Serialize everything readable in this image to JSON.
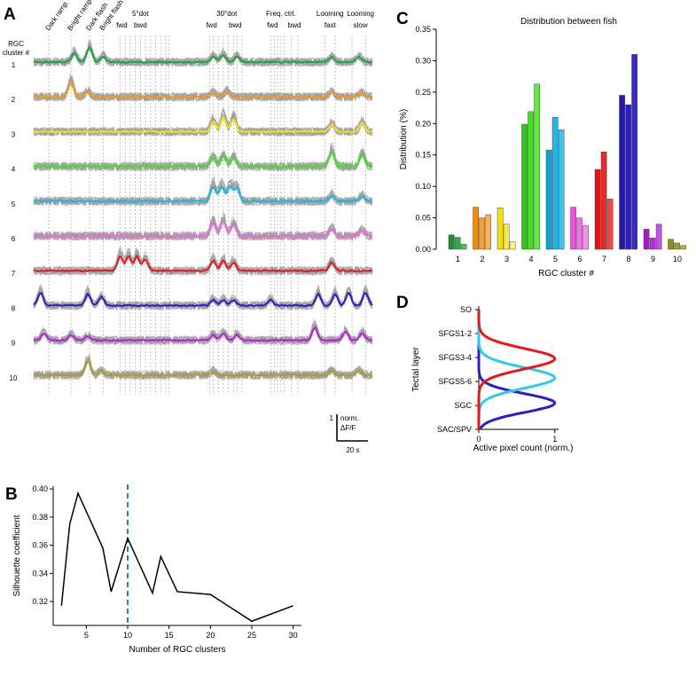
{
  "panels": {
    "A": "A",
    "B": "B",
    "C": "C",
    "D": "D"
  },
  "chart_data": [
    {
      "panel": "A",
      "type": "line",
      "row_header": "RGC cluster #",
      "stimuli": [
        {
          "label": "Dark ramp",
          "x": 0.045,
          "rot": true
        },
        {
          "label": "Bright ramp",
          "x": 0.11,
          "rot": true
        },
        {
          "label": "Dark flash",
          "x": 0.165,
          "rot": true
        },
        {
          "label": "Bright flash",
          "x": 0.205,
          "rot": true
        },
        {
          "label": "5°dot",
          "x": 0.315,
          "rot": false,
          "row": 1
        },
        {
          "label": "fwd",
          "x": 0.26,
          "rot": false,
          "row": 2
        },
        {
          "label": "bwd",
          "x": 0.315,
          "rot": false,
          "row": 2
        },
        {
          "label": "30°dot",
          "x": 0.57,
          "rot": false,
          "row": 1
        },
        {
          "label": "fwd",
          "x": 0.525,
          "rot": false,
          "row": 2
        },
        {
          "label": "bwd",
          "x": 0.595,
          "rot": false,
          "row": 2
        },
        {
          "label": "Freq. ctrl.",
          "x": 0.73,
          "rot": false,
          "row": 1
        },
        {
          "label": "fwd",
          "x": 0.705,
          "rot": false,
          "row": 2
        },
        {
          "label": "bwd",
          "x": 0.77,
          "rot": false,
          "row": 2
        },
        {
          "label": "Looming",
          "x": 0.875,
          "rot": false,
          "row": 1
        },
        {
          "label": "fast",
          "x": 0.875,
          "rot": false,
          "row": 2
        },
        {
          "label": "Looming",
          "x": 0.965,
          "rot": false,
          "row": 1
        },
        {
          "label": "slow",
          "x": 0.965,
          "rot": false,
          "row": 2
        }
      ],
      "clusters": [
        {
          "id": "1",
          "color": "#1fa23e",
          "bumps": [
            [
              0.12,
              0.6
            ],
            [
              0.165,
              1.0
            ],
            [
              0.205,
              0.4
            ],
            [
              0.53,
              0.4
            ],
            [
              0.56,
              0.5
            ],
            [
              0.6,
              0.4
            ],
            [
              0.88,
              0.35
            ],
            [
              0.96,
              0.35
            ]
          ]
        },
        {
          "id": "2",
          "color": "#f39a1e",
          "bumps": [
            [
              0.11,
              1.0
            ],
            [
              0.16,
              0.35
            ],
            [
              0.53,
              0.3
            ],
            [
              0.57,
              0.35
            ],
            [
              0.88,
              0.35
            ],
            [
              0.97,
              0.3
            ]
          ]
        },
        {
          "id": "3",
          "color": "#f2e21a",
          "bumps": [
            [
              0.53,
              0.7
            ],
            [
              0.56,
              1.0
            ],
            [
              0.59,
              0.9
            ],
            [
              0.88,
              0.5
            ],
            [
              0.97,
              0.6
            ]
          ]
        },
        {
          "id": "4",
          "color": "#3de31f",
          "bumps": [
            [
              0.53,
              0.6
            ],
            [
              0.56,
              0.7
            ],
            [
              0.59,
              0.6
            ],
            [
              0.88,
              1.0
            ],
            [
              0.97,
              0.8
            ]
          ]
        },
        {
          "id": "5",
          "color": "#1fb8e3",
          "bumps": [
            [
              0.53,
              1.0
            ],
            [
              0.555,
              1.0
            ],
            [
              0.58,
              1.0
            ],
            [
              0.6,
              0.9
            ],
            [
              0.88,
              0.4
            ],
            [
              0.97,
              0.35
            ]
          ]
        },
        {
          "id": "6",
          "color": "#f266e3",
          "bumps": [
            [
              0.53,
              0.9
            ],
            [
              0.56,
              1.0
            ],
            [
              0.59,
              0.8
            ],
            [
              0.88,
              0.5
            ],
            [
              0.97,
              0.4
            ]
          ]
        },
        {
          "id": "7",
          "color": "#e31a1a",
          "bumps": [
            [
              0.255,
              1.0
            ],
            [
              0.28,
              1.0
            ],
            [
              0.305,
              1.0
            ],
            [
              0.33,
              0.8
            ],
            [
              0.53,
              0.7
            ],
            [
              0.56,
              0.7
            ],
            [
              0.59,
              0.6
            ],
            [
              0.88,
              0.6
            ]
          ]
        },
        {
          "id": "8",
          "color": "#2b1fc2",
          "bumps": [
            [
              0.02,
              0.9
            ],
            [
              0.16,
              0.8
            ],
            [
              0.2,
              0.6
            ],
            [
              0.53,
              0.4
            ],
            [
              0.56,
              0.4
            ],
            [
              0.59,
              0.4
            ],
            [
              0.7,
              0.4
            ],
            [
              0.84,
              0.8
            ],
            [
              0.89,
              0.8
            ],
            [
              0.93,
              0.9
            ],
            [
              0.98,
              0.9
            ]
          ]
        },
        {
          "id": "9",
          "color": "#b91fd8",
          "bumps": [
            [
              0.03,
              0.5
            ],
            [
              0.11,
              0.4
            ],
            [
              0.16,
              0.3
            ],
            [
              0.53,
              0.4
            ],
            [
              0.56,
              0.5
            ],
            [
              0.6,
              0.4
            ],
            [
              0.83,
              0.9
            ],
            [
              0.92,
              0.6
            ],
            [
              0.97,
              0.5
            ]
          ]
        },
        {
          "id": "10",
          "color": "#a3a325",
          "bumps": [
            [
              0.16,
              1.0
            ],
            [
              0.2,
              0.3
            ],
            [
              0.53,
              0.25
            ],
            [
              0.88,
              0.3
            ],
            [
              0.96,
              0.3
            ]
          ]
        }
      ],
      "scalebar": {
        "y_value": "1",
        "y_label_1": "norm.",
        "y_label_2": "ΔF/F",
        "x_label": "20 s"
      }
    },
    {
      "panel": "B",
      "type": "line",
      "xlabel": "Number of RGC clusters",
      "ylabel": "Silhouette coefficient",
      "x": [
        2,
        3,
        4,
        7,
        8,
        10,
        13,
        14,
        16,
        20,
        25,
        30
      ],
      "y": [
        0.317,
        0.375,
        0.397,
        0.358,
        0.327,
        0.365,
        0.326,
        0.352,
        0.327,
        0.325,
        0.306,
        0.317
      ],
      "xlim": [
        1,
        31
      ],
      "ylim": [
        0.303,
        0.402
      ],
      "xticks": [
        5,
        10,
        15,
        20,
        25,
        30
      ],
      "yticks": [
        0.32,
        0.34,
        0.36,
        0.38,
        0.4
      ],
      "ytick_labels": [
        "0.32",
        "0.34",
        "0.36",
        "0.38",
        "0.40"
      ],
      "vline": {
        "x": 10,
        "color": "#2a7fb5"
      }
    },
    {
      "panel": "C",
      "type": "bar",
      "title": "Distribution between fish",
      "xlabel": "RGC cluster #",
      "ylabel": "Distribution (%)",
      "categories": [
        "1",
        "2",
        "3",
        "4",
        "5",
        "6",
        "7",
        "8",
        "9",
        "10"
      ],
      "fish_values": [
        [
          0.023,
          0.019,
          0.008
        ],
        [
          0.067,
          0.05,
          0.055
        ],
        [
          0.066,
          0.04,
          0.012
        ],
        [
          0.199,
          0.219,
          0.263
        ],
        [
          0.158,
          0.21,
          0.19
        ],
        [
          0.067,
          0.05,
          0.038
        ],
        [
          0.127,
          0.155,
          0.08
        ],
        [
          0.245,
          0.23,
          0.31
        ],
        [
          0.032,
          0.018,
          0.04
        ],
        [
          0.016,
          0.01,
          0.006
        ]
      ],
      "colors": [
        [
          "#1e8c3a",
          "#33a84e",
          "#4ec36a"
        ],
        [
          "#f08c10",
          "#f5a030",
          "#f7b35a"
        ],
        [
          "#f2e00e",
          "#f5e84a",
          "#f8ef80"
        ],
        [
          "#34c41a",
          "#45dc26",
          "#5af03a"
        ],
        [
          "#10a0d8",
          "#24b4e6",
          "#3cc4ee"
        ],
        [
          "#e855d8",
          "#f072e6",
          "#f590ee"
        ],
        [
          "#e01414",
          "#e82a2a",
          "#f04848"
        ],
        [
          "#2618b0",
          "#2e20c0",
          "#3628d0"
        ],
        [
          "#a818c8",
          "#b82edc",
          "#c84ee8"
        ],
        [
          "#8c8c20",
          "#a0a030",
          "#b4b444"
        ]
      ],
      "ylim": [
        0,
        0.35
      ],
      "yticks": [
        0.0,
        0.05,
        0.1,
        0.15,
        0.2,
        0.25,
        0.3,
        0.35
      ],
      "ytick_labels": [
        "0.00",
        "0.05",
        "0.10",
        "0.15",
        "0.20",
        "0.25",
        "0.30",
        "0.35"
      ]
    },
    {
      "panel": "D",
      "type": "line",
      "xlabel": "Active pixel count (norm.)",
      "ylabel": "Tectal layer",
      "layers": [
        "SO",
        "SFGS1-2",
        "SFGS3-4",
        "SFGS5-6",
        "SGC",
        "SAC/SPV"
      ],
      "xticks": [
        0,
        1
      ],
      "xlim": [
        0,
        1.05
      ],
      "series": [
        {
          "color": "#2b1fc2",
          "peak_layer": 3.9,
          "width": 0.55
        },
        {
          "color": "#33c9e8",
          "peak_layer": 2.85,
          "width": 0.6
        },
        {
          "color": "#e31a1a",
          "peak_layer": 2.05,
          "width": 0.6
        }
      ]
    }
  ]
}
